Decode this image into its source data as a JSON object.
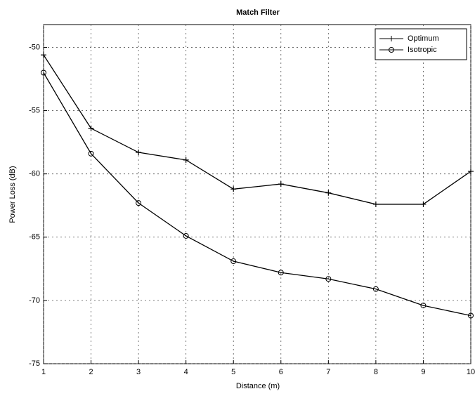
{
  "chart_data": {
    "type": "line",
    "title": "Match Filter",
    "x_label": "Distance (m)",
    "y_label": "Power Loss (dB)",
    "x": [
      1,
      2,
      3,
      4,
      5,
      6,
      7,
      8,
      9,
      10
    ],
    "series": [
      {
        "name": "Optimum",
        "color": "#000000",
        "marker": "plus",
        "values": [
          -50.6,
          -56.4,
          -58.3,
          -58.9,
          -61.2,
          -60.8,
          -61.5,
          -62.4,
          -62.4,
          -59.8
        ]
      },
      {
        "name": "Isotropic",
        "color": "#000000",
        "marker": "circle",
        "values": [
          -52.0,
          -58.4,
          -62.3,
          -64.9,
          -66.9,
          -67.8,
          -68.3,
          -69.1,
          -70.4,
          -71.2
        ]
      }
    ],
    "xlim": [
      1,
      10
    ],
    "xticks": [
      1,
      2,
      3,
      4,
      5,
      6,
      7,
      8,
      9,
      10
    ],
    "ylim": [
      -75,
      -48.2
    ],
    "yticks": [
      -75,
      -70,
      -65,
      -60,
      -55,
      -50
    ],
    "grid": true,
    "legend": "upper right"
  }
}
